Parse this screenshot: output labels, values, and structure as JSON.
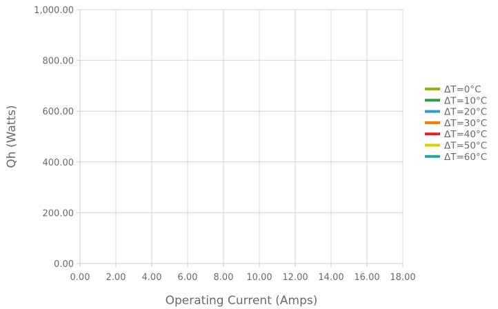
{
  "chart_data": {
    "type": "line",
    "title": "",
    "xlabel": "Operating Current (Amps)",
    "ylabel": "Qh (Watts)",
    "xlim": [
      0,
      18
    ],
    "ylim": [
      0,
      1000
    ],
    "x_ticks": [
      "0.00",
      "2.00",
      "4.00",
      "6.00",
      "8.00",
      "10.00",
      "12.00",
      "14.00",
      "16.00",
      "18.00"
    ],
    "y_ticks": [
      "0.00",
      "200.00",
      "400.00",
      "600.00",
      "800.00",
      "1,000.00"
    ],
    "grid": true,
    "legend_position": "right",
    "series": [
      {
        "name": "ΔT=0°C",
        "color": "#8db600",
        "x": [],
        "y": []
      },
      {
        "name": "ΔT=10°C",
        "color": "#2e9a48",
        "x": [],
        "y": []
      },
      {
        "name": "ΔT=20°C",
        "color": "#3399cc",
        "x": [],
        "y": []
      },
      {
        "name": "ΔT=30°C",
        "color": "#f57c00",
        "x": [],
        "y": []
      },
      {
        "name": "ΔT=40°C",
        "color": "#e02424",
        "x": [],
        "y": []
      },
      {
        "name": "ΔT=50°C",
        "color": "#d4d400",
        "x": [],
        "y": []
      },
      {
        "name": "ΔT=60°C",
        "color": "#20a8a0",
        "x": [],
        "y": []
      }
    ]
  }
}
